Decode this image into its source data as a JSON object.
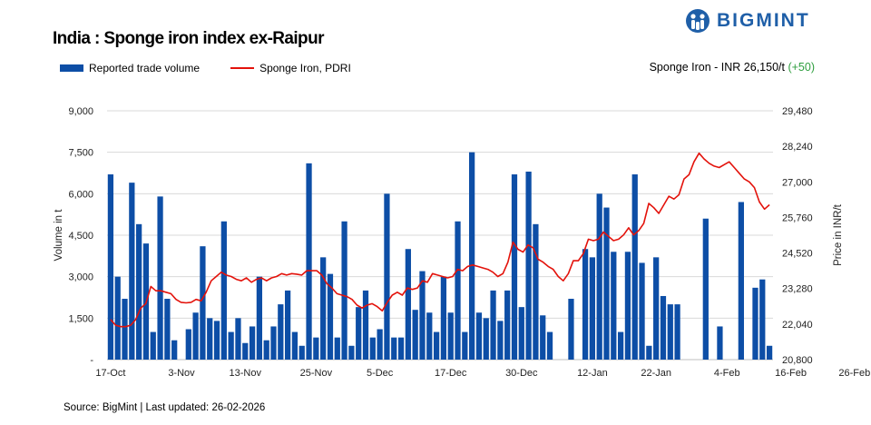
{
  "header": {
    "title": "India : Sponge iron index ex-Raipur",
    "logo_text": "BIGMINT",
    "price_note": "Sponge Iron - INR 26,150/t",
    "price_change": "(+50)"
  },
  "footer": {
    "source": "Source: BigMint | Last updated: 26-02-2026"
  },
  "colors": {
    "bar": "#0d4ea6",
    "line": "#e3120b",
    "brand": "#1f5fa8",
    "grid": "#d9d9d9"
  },
  "chart_data": {
    "type": "bar",
    "title": "India : Sponge iron index ex-Raipur",
    "ylabel": "Volume in t",
    "y2label": "Price in INR/t",
    "ylim": [
      0,
      9000
    ],
    "y2lim": [
      20800,
      29480
    ],
    "yticks": [
      "-",
      "1,500",
      "3,000",
      "4,500",
      "6,000",
      "7,500",
      "9,000"
    ],
    "y2ticks": [
      "20,800",
      "22,040",
      "23,280",
      "24,520",
      "25,760",
      "27,000",
      "28,240",
      "29,480"
    ],
    "xticks": [
      {
        "index": 0,
        "label": "17-Oct"
      },
      {
        "index": 10,
        "label": "3-Nov"
      },
      {
        "index": 19,
        "label": "13-Nov"
      },
      {
        "index": 29,
        "label": "25-Nov"
      },
      {
        "index": 38,
        "label": "5-Dec"
      },
      {
        "index": 48,
        "label": "17-Dec"
      },
      {
        "index": 58,
        "label": "30-Dec"
      },
      {
        "index": 68,
        "label": "12-Jan"
      },
      {
        "index": 77,
        "label": "22-Jan"
      },
      {
        "index": 87,
        "label": "4-Feb"
      },
      {
        "index": 96,
        "label": "16-Feb"
      },
      {
        "index": 105,
        "label": "26-Feb"
      }
    ],
    "legend": [
      "Reported trade volume",
      "Sponge Iron, PDRI"
    ],
    "legend_position": "top-left",
    "grid": true,
    "series": [
      {
        "name": "Reported trade volume",
        "type": "bar",
        "values": [
          6700,
          3000,
          2200,
          6400,
          4900,
          4200,
          1000,
          5900,
          2200,
          700,
          0,
          1100,
          1700,
          4100,
          1500,
          1400,
          5000,
          1000,
          1500,
          600,
          1200,
          3000,
          700,
          1200,
          2000,
          2500,
          1000,
          500,
          7100,
          800,
          3700,
          3100,
          800,
          5000,
          500,
          1900,
          2500,
          800,
          1100,
          6000,
          800,
          800,
          4000,
          1800,
          3200,
          1700,
          1000,
          3000,
          1700,
          5000,
          1000,
          7500,
          1700,
          1500,
          2500,
          1400,
          2500,
          6700,
          1900,
          6800,
          4900,
          1600,
          1000,
          0,
          0,
          2200,
          0,
          4000,
          3700,
          6000,
          5500,
          3900,
          1000,
          3900,
          6700,
          3500,
          500,
          3700,
          2300,
          2000,
          2000,
          0,
          0,
          0,
          5100,
          0,
          1200,
          0,
          0,
          5700,
          0,
          2600,
          2900,
          500
        ],
        "x_index": [
          0,
          1,
          2,
          3,
          4,
          5,
          6,
          7,
          8,
          9,
          10,
          11,
          12,
          13,
          14,
          15,
          16,
          17,
          18,
          19,
          20,
          21,
          22,
          23,
          24,
          25,
          26,
          27,
          28,
          29,
          30,
          31,
          32,
          33,
          34,
          35,
          36,
          37,
          38,
          39,
          40,
          41,
          42,
          43,
          44,
          45,
          46,
          47,
          48,
          49,
          50,
          51,
          52,
          53,
          54,
          55,
          56,
          57,
          58,
          59,
          60,
          61,
          62,
          63,
          64,
          65,
          66,
          67,
          68,
          69,
          70,
          71,
          72,
          73,
          74,
          75,
          76,
          77,
          78,
          79,
          80,
          81,
          82,
          83,
          84,
          85,
          86,
          87,
          88,
          89,
          90,
          91,
          92,
          93
        ]
      },
      {
        "name": "Sponge Iron, PDRI",
        "type": "line",
        "values": [
          22200,
          22000,
          21950,
          21950,
          22000,
          22200,
          22600,
          22750,
          23350,
          23200,
          23200,
          23150,
          23100,
          22900,
          22800,
          22780,
          22800,
          22900,
          22850,
          23150,
          23550,
          23700,
          23850,
          23750,
          23700,
          23600,
          23550,
          23650,
          23500,
          23600,
          23650,
          23550,
          23650,
          23700,
          23800,
          23750,
          23800,
          23780,
          23750,
          23900,
          23900,
          23900,
          23750,
          23450,
          23300,
          23100,
          23050,
          23000,
          22900,
          22700,
          22600,
          22700,
          22750,
          22650,
          22500,
          22800,
          23050,
          23150,
          23050,
          23300,
          23250,
          23300,
          23550,
          23500,
          23800,
          23750,
          23700,
          23650,
          23700,
          23950,
          23900,
          24050,
          24100,
          24050,
          24000,
          23950,
          23850,
          23700,
          23800,
          24200,
          24900,
          24650,
          24550,
          24800,
          24700,
          24300,
          24200,
          24050,
          23950,
          23700,
          23550,
          23800,
          24250,
          24250,
          24500,
          25000,
          24950,
          25000,
          25250,
          25100,
          24950,
          25000,
          25150,
          25400,
          25150,
          25300,
          25550,
          26250,
          26100,
          25900,
          26200,
          26500,
          26400,
          26550,
          27100,
          27250,
          27700,
          28000,
          27800,
          27650,
          27550,
          27500,
          27600,
          27700,
          27500,
          27300,
          27100,
          27000,
          26800,
          26300,
          26050,
          26200
        ],
        "x_index": "evenly spaced across the same category axis"
      }
    ]
  }
}
